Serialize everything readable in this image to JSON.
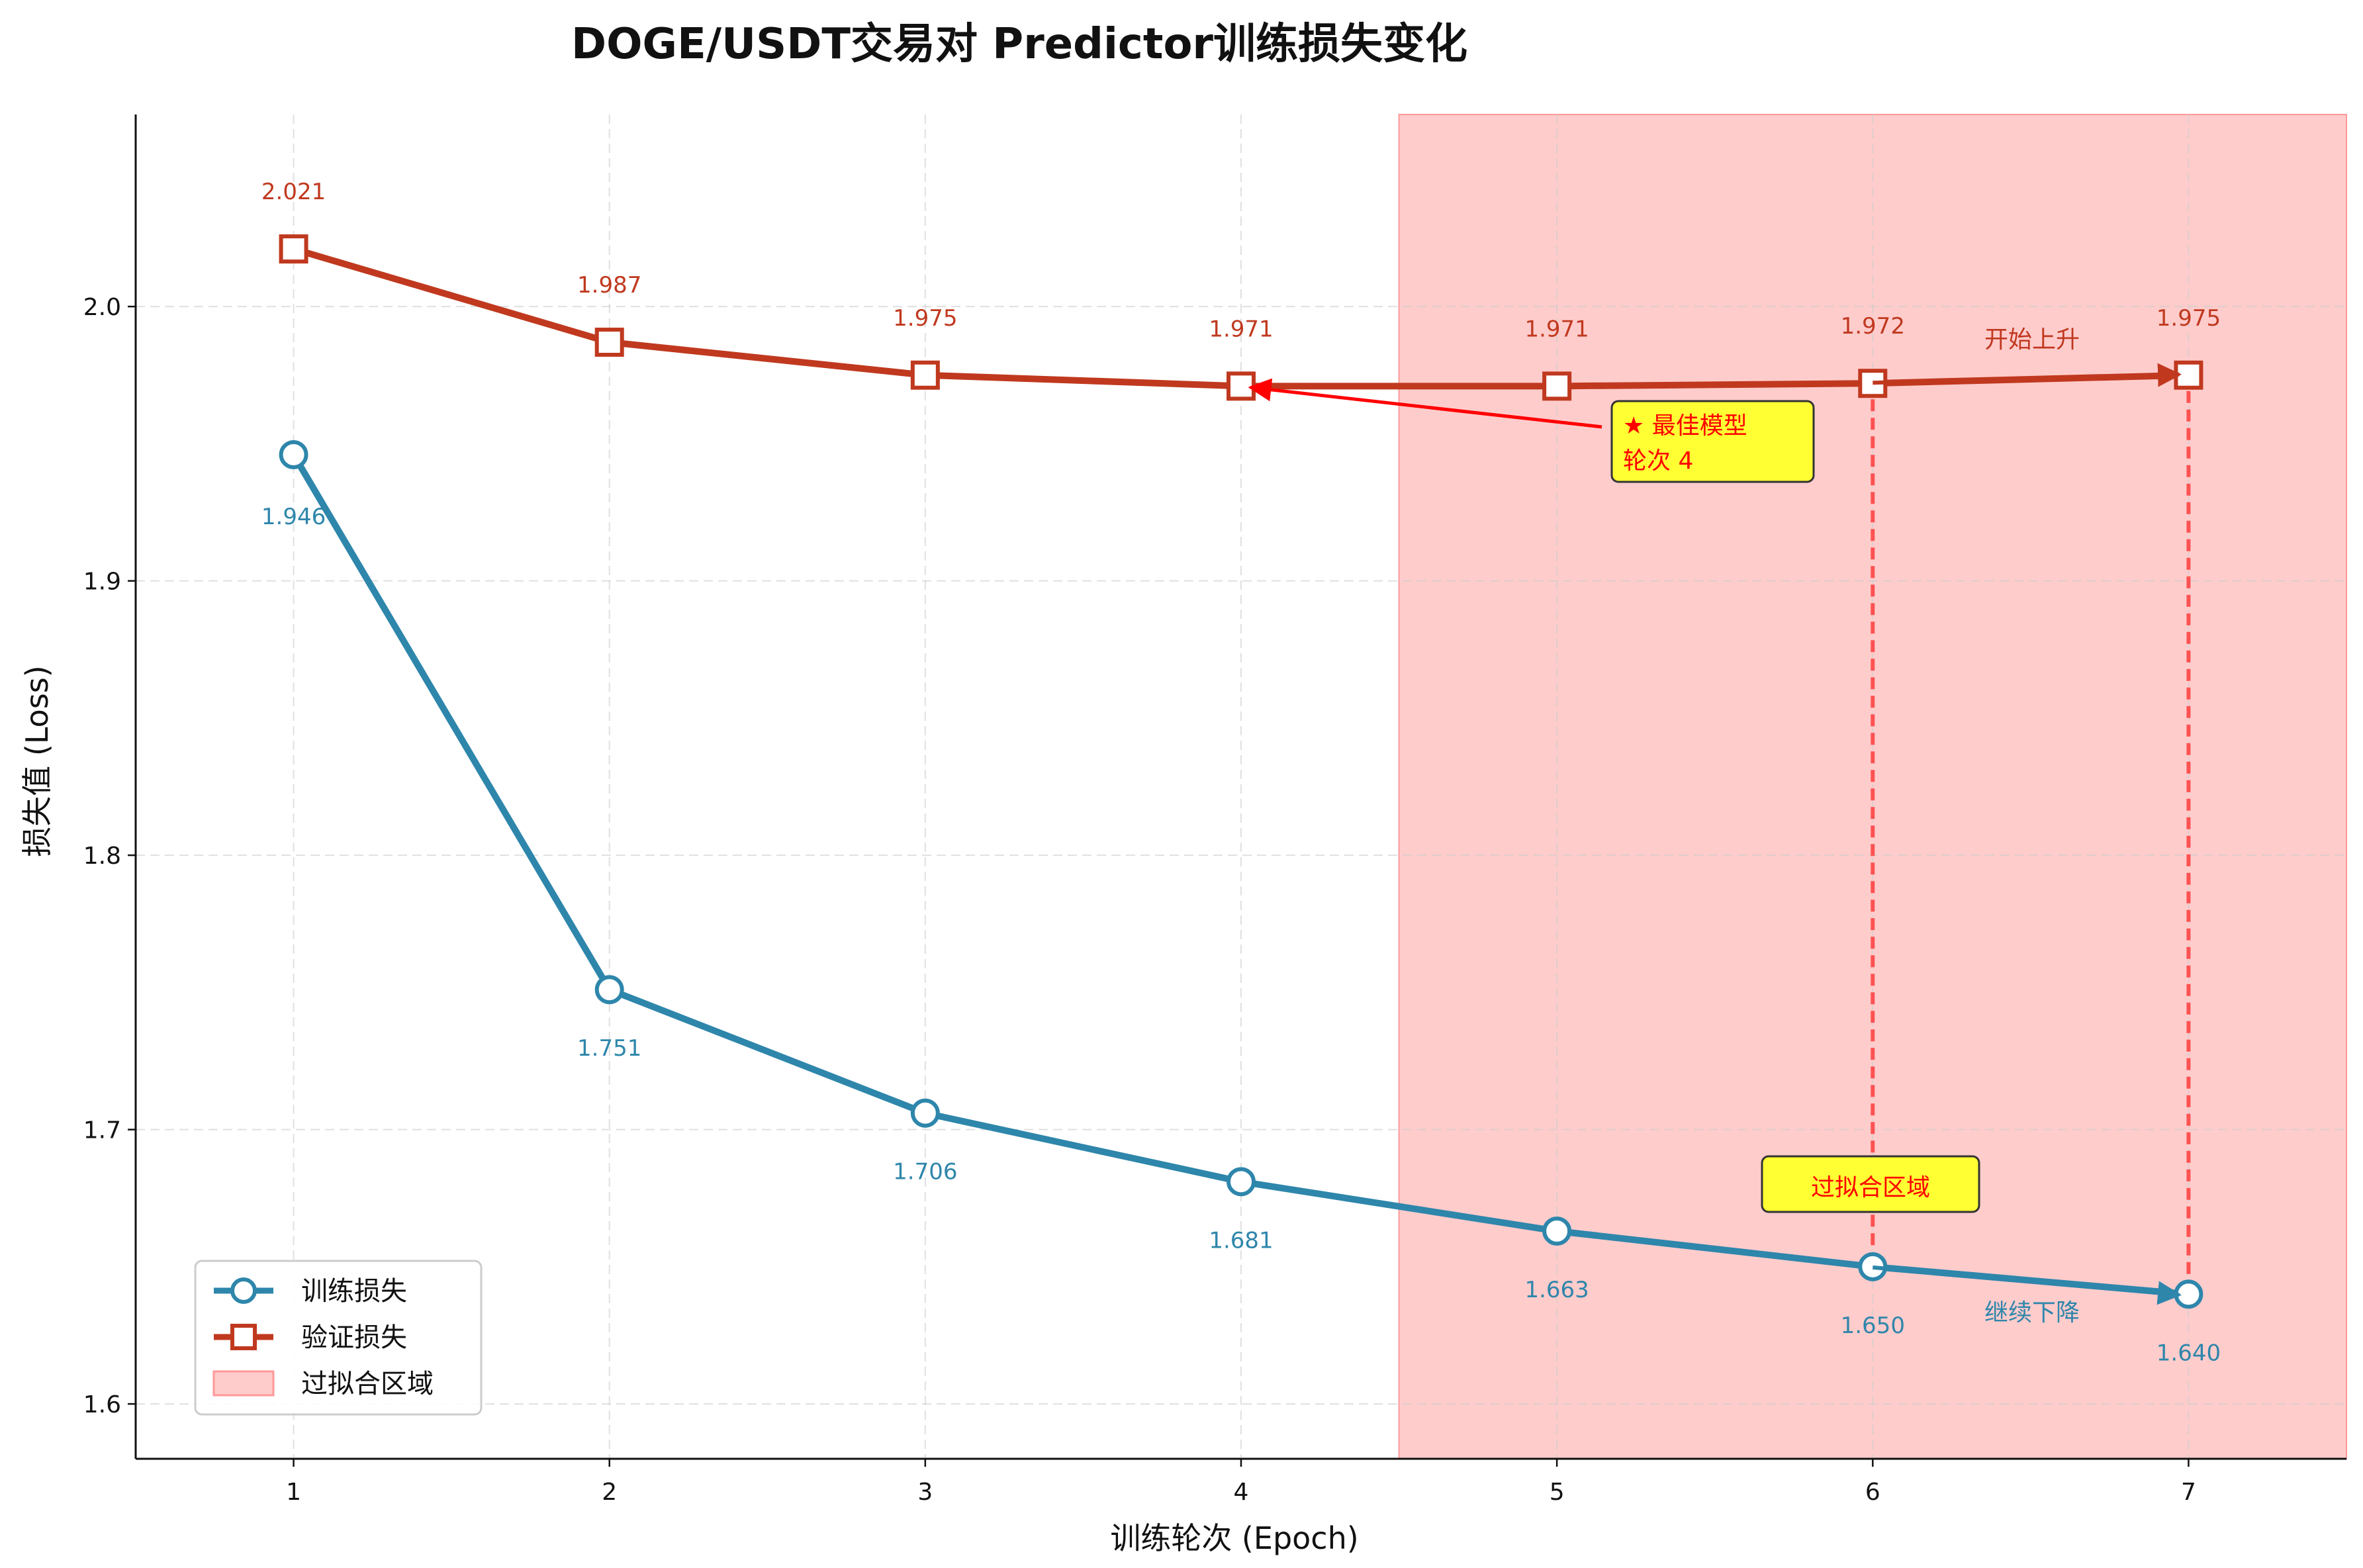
{
  "chart_data": {
    "type": "line",
    "title": "DOGE/USDT交易对 Predictor训练损失变化",
    "xlabel": "训练轮次 (Epoch)",
    "ylabel": "损失值 (Loss)",
    "x": [
      1,
      2,
      3,
      4,
      5,
      6,
      7
    ],
    "xlim": [
      0.5,
      7.5
    ],
    "ylim": [
      1.58,
      2.07
    ],
    "xticks": [
      "1",
      "2",
      "3",
      "4",
      "5",
      "6",
      "7"
    ],
    "yticks": [
      1.6,
      1.7,
      1.8,
      1.9,
      2.0
    ],
    "ytick_labels": [
      "1.6",
      "1.7",
      "1.8",
      "1.9",
      "2.0"
    ],
    "grid": true,
    "legend_position": "lower-left",
    "series": [
      {
        "name": "训练损失",
        "values": [
          1.946,
          1.751,
          1.706,
          1.681,
          1.663,
          1.65,
          1.64
        ],
        "labels": [
          "1.946",
          "1.751",
          "1.706",
          "1.681",
          "1.663",
          "1.650",
          "1.640"
        ],
        "color": "#2e86ab",
        "marker": "circle"
      },
      {
        "name": "验证损失",
        "values": [
          2.021,
          1.987,
          1.975,
          1.971,
          1.971,
          1.972,
          1.975
        ],
        "labels": [
          "2.021",
          "1.987",
          "1.975",
          "1.971",
          "1.971",
          "1.972",
          "1.975"
        ],
        "color": "#c0391f",
        "marker": "square"
      }
    ],
    "overfit_region": {
      "name": "过拟合区域",
      "x_start": 4.5,
      "x_end": 7.5,
      "color": "#ff9999",
      "label": "过拟合区域"
    },
    "annotations": {
      "best_model_line1": "★ 最佳模型",
      "best_model_line2": "轮次 4",
      "best_epoch": 4,
      "best_value": 1.971,
      "val_rising": "开始上升",
      "train_falling": "继续下降"
    },
    "colors": {
      "train": "#2e86ab",
      "val": "#c0391f",
      "highlight": "#ff0000",
      "box_fill": "#ffff33"
    }
  }
}
